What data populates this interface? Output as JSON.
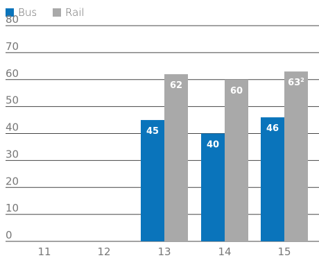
{
  "chart_data": {
    "type": "bar",
    "categories": [
      "11",
      "12",
      "13",
      "14",
      "15"
    ],
    "highlight_category": "15",
    "series": [
      {
        "name": "Bus",
        "color": "#0a74bb",
        "values": [
          null,
          null,
          45,
          40,
          46
        ],
        "labels": [
          "",
          "",
          "45",
          "40",
          "46"
        ]
      },
      {
        "name": "Rail",
        "color": "#a9a9a9",
        "values": [
          null,
          null,
          62,
          60,
          63
        ],
        "labels": [
          "",
          "",
          "62",
          "60",
          "63"
        ],
        "label_superscripts": [
          "",
          "",
          "",
          "",
          "2"
        ]
      }
    ],
    "ylim": [
      0,
      80
    ],
    "yticks": [
      "0",
      "10",
      "20",
      "30",
      "40",
      "50",
      "60",
      "70",
      "80"
    ],
    "grid": true,
    "legend_position": "top-left",
    "colors": {
      "axis_text": "#777777",
      "grid": "#444444",
      "highlight_text": "#0a74bb"
    }
  }
}
